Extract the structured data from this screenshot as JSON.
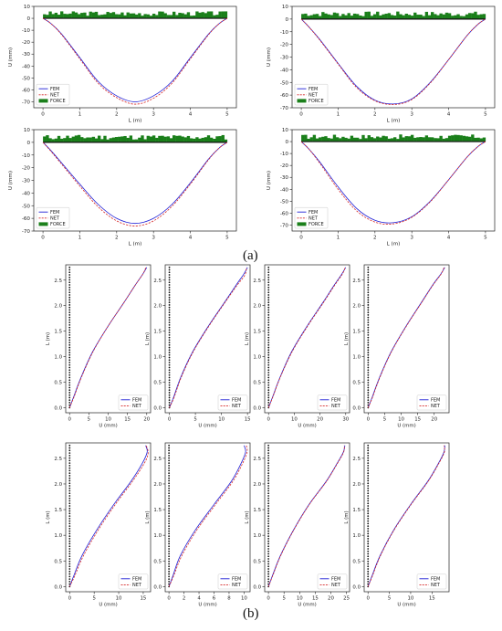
{
  "panel_labels": {
    "a": "(a)",
    "b": "(b)"
  },
  "chart_data": [
    {
      "id": "a1",
      "type": "line",
      "xlabel": "L (m)",
      "ylabel": "U (mm)",
      "xlim": [
        -0.25,
        5.25
      ],
      "ylim": [
        -75,
        10
      ],
      "xticks": [
        "0",
        "1",
        "2",
        "3",
        "4",
        "5"
      ],
      "yticks": [
        "10",
        "0",
        "-10",
        "-20",
        "-30",
        "-40",
        "-50",
        "-60",
        "-70"
      ],
      "legend": "lower-left",
      "series": [
        {
          "name": "FEM",
          "x": [
            0,
            0.2,
            0.5,
            1,
            1.5,
            2,
            2.5,
            3,
            3.5,
            4,
            4.5,
            4.8,
            5
          ],
          "values": [
            0,
            -4,
            -13,
            -33,
            -53,
            -65,
            -70,
            -65,
            -53,
            -33,
            -13,
            -4,
            0
          ]
        },
        {
          "name": "NET",
          "x": [
            0,
            0.2,
            0.5,
            1,
            1.5,
            2,
            2.5,
            3,
            3.5,
            4,
            4.5,
            4.8,
            5
          ],
          "values": [
            0,
            -4,
            -13.5,
            -34,
            -54.5,
            -66.5,
            -72,
            -67,
            -54.5,
            -34,
            -13.5,
            -4,
            0
          ]
        },
        {
          "name": "FORCE",
          "x": [
            0,
            5
          ],
          "values": [
            0,
            6
          ]
        }
      ]
    },
    {
      "id": "a2",
      "type": "line",
      "xlabel": "L (m)",
      "ylabel": "U (mm)",
      "xlim": [
        -0.25,
        5.25
      ],
      "ylim": [
        -70,
        10
      ],
      "xticks": [
        "0",
        "1",
        "2",
        "3",
        "4",
        "5"
      ],
      "yticks": [
        "10",
        "0",
        "-10",
        "-20",
        "-30",
        "-40",
        "-50",
        "-60",
        "-70"
      ],
      "legend": "lower-left",
      "series": [
        {
          "name": "FEM",
          "x": [
            0,
            0.2,
            0.5,
            1,
            1.5,
            2,
            2.5,
            3,
            3.5,
            4,
            4.5,
            4.8,
            5
          ],
          "values": [
            0,
            -6,
            -16,
            -35,
            -53,
            -64,
            -67,
            -63,
            -50,
            -32,
            -13,
            -4,
            0
          ]
        },
        {
          "name": "NET",
          "x": [
            0,
            0.2,
            0.5,
            1,
            1.5,
            2,
            2.5,
            3,
            3.5,
            4,
            4.5,
            4.8,
            5
          ],
          "values": [
            0,
            -6,
            -16.5,
            -35.5,
            -54,
            -64.5,
            -67.5,
            -63.5,
            -50.5,
            -32,
            -13,
            -4,
            0
          ]
        },
        {
          "name": "FORCE",
          "x": [
            0,
            5
          ],
          "values": [
            0,
            6
          ]
        }
      ]
    },
    {
      "id": "a3",
      "type": "line",
      "xlabel": "L (m)",
      "ylabel": "U (mm)",
      "xlim": [
        -0.25,
        5.25
      ],
      "ylim": [
        -70,
        10
      ],
      "xticks": [
        "0",
        "1",
        "2",
        "3",
        "4",
        "5"
      ],
      "yticks": [
        "10",
        "0",
        "-10",
        "-20",
        "-30",
        "-40",
        "-50",
        "-60",
        "-70"
      ],
      "legend": "lower-left",
      "series": [
        {
          "name": "FEM",
          "x": [
            0,
            0.2,
            0.5,
            1,
            1.5,
            2,
            2.5,
            3,
            3.5,
            4,
            4.5,
            4.8,
            5
          ],
          "values": [
            0,
            -6,
            -16,
            -33,
            -49,
            -60,
            -64,
            -60,
            -49,
            -32,
            -13,
            -4,
            0
          ]
        },
        {
          "name": "NET",
          "x": [
            0,
            0.2,
            0.5,
            1,
            1.5,
            2,
            2.5,
            3,
            3.5,
            4,
            4.5,
            4.8,
            5
          ],
          "values": [
            0,
            -6.5,
            -17,
            -34.5,
            -51,
            -62,
            -66,
            -62,
            -50.5,
            -33,
            -13.5,
            -4,
            0
          ]
        },
        {
          "name": "FORCE",
          "x": [
            0,
            5
          ],
          "values": [
            0,
            6
          ]
        }
      ]
    },
    {
      "id": "a4",
      "type": "line",
      "xlabel": "L (m)",
      "ylabel": "U (mm)",
      "xlim": [
        -0.25,
        5.25
      ],
      "ylim": [
        -75,
        10
      ],
      "xticks": [
        "0",
        "1",
        "2",
        "3",
        "4",
        "5"
      ],
      "yticks": [
        "10",
        "0",
        "-10",
        "-20",
        "-30",
        "-40",
        "-50",
        "-60",
        "-70"
      ],
      "legend": "lower-left",
      "series": [
        {
          "name": "FEM",
          "x": [
            0,
            0.2,
            0.5,
            1,
            1.5,
            2,
            2.5,
            3,
            3.5,
            4,
            4.5,
            4.8,
            5
          ],
          "values": [
            0,
            -6,
            -17,
            -38,
            -56,
            -66,
            -68,
            -63,
            -50,
            -32,
            -13,
            -4,
            0
          ]
        },
        {
          "name": "NET",
          "x": [
            0,
            0.2,
            0.5,
            1,
            1.5,
            2,
            2.5,
            3,
            3.5,
            4,
            4.5,
            4.8,
            5
          ],
          "values": [
            0,
            -6,
            -18,
            -40,
            -58,
            -67.5,
            -69,
            -63.5,
            -50.5,
            -32,
            -13,
            -4,
            0
          ]
        },
        {
          "name": "FORCE",
          "x": [
            0,
            5
          ],
          "values": [
            0,
            6
          ]
        }
      ]
    },
    {
      "id": "b1",
      "type": "line",
      "xlabel": "U (mm)",
      "ylabel": "L (m)",
      "xlim": [
        -1,
        21
      ],
      "ylim": [
        -0.1,
        2.8
      ],
      "xticks": [
        "0",
        "5",
        "10",
        "15",
        "20"
      ],
      "yticks": [
        "0.0",
        "0.5",
        "1.0",
        "1.5",
        "2.0",
        "2.5"
      ],
      "legend": "lower-right",
      "series": [
        {
          "name": "FEM",
          "x": [
            0,
            1,
            3,
            6,
            10,
            14,
            17,
            19,
            20
          ],
          "values": [
            0,
            0.2,
            0.6,
            1.1,
            1.6,
            2.05,
            2.4,
            2.62,
            2.75
          ]
        },
        {
          "name": "NET",
          "x": [
            0,
            1.1,
            3.1,
            6.1,
            10,
            14,
            17,
            19,
            19.8
          ],
          "values": [
            0,
            0.2,
            0.6,
            1.1,
            1.6,
            2.05,
            2.4,
            2.62,
            2.75
          ]
        }
      ]
    },
    {
      "id": "b2",
      "type": "line",
      "xlabel": "U (mm)",
      "ylabel": "L (m)",
      "xlim": [
        -0.8,
        15.5
      ],
      "ylim": [
        -0.1,
        2.8
      ],
      "xticks": [
        "0",
        "5",
        "10",
        "15"
      ],
      "yticks": [
        "0.0",
        "0.5",
        "1.0",
        "1.5",
        "2.0",
        "2.5"
      ],
      "legend": "lower-right",
      "series": [
        {
          "name": "FEM",
          "x": [
            0,
            0.8,
            2.2,
            4.5,
            7.5,
            10.5,
            12.8,
            14.3,
            15
          ],
          "values": [
            0,
            0.2,
            0.6,
            1.1,
            1.6,
            2.05,
            2.4,
            2.62,
            2.75
          ]
        },
        {
          "name": "NET",
          "x": [
            0,
            0.9,
            2.3,
            4.6,
            7.6,
            10.6,
            13,
            14.5,
            14.8
          ],
          "values": [
            0,
            0.2,
            0.6,
            1.1,
            1.6,
            2.05,
            2.4,
            2.6,
            2.75
          ]
        }
      ]
    },
    {
      "id": "b3",
      "type": "line",
      "xlabel": "U (mm)",
      "ylabel": "L (m)",
      "xlim": [
        -1.5,
        31.5
      ],
      "ylim": [
        -0.1,
        2.8
      ],
      "xticks": [
        "0",
        "10",
        "20",
        "30"
      ],
      "yticks": [
        "0.0",
        "0.5",
        "1.0",
        "1.5",
        "2.0",
        "2.5"
      ],
      "legend": "lower-right",
      "series": [
        {
          "name": "FEM",
          "x": [
            0,
            1.5,
            4.5,
            9,
            15,
            21,
            25.5,
            28.5,
            30
          ],
          "values": [
            0,
            0.2,
            0.6,
            1.1,
            1.6,
            2.05,
            2.4,
            2.62,
            2.75
          ]
        },
        {
          "name": "NET",
          "x": [
            0,
            1.6,
            4.6,
            9.2,
            15.2,
            21.2,
            25.7,
            28.7,
            29.8
          ],
          "values": [
            0,
            0.2,
            0.6,
            1.1,
            1.6,
            2.05,
            2.4,
            2.62,
            2.75
          ]
        }
      ]
    },
    {
      "id": "b4",
      "type": "line",
      "xlabel": "U (mm)",
      "ylabel": "L (m)",
      "xlim": [
        -1.2,
        24.5
      ],
      "ylim": [
        -0.1,
        2.8
      ],
      "xticks": [
        "0",
        "5",
        "10",
        "15",
        "20"
      ],
      "yticks": [
        "0.0",
        "0.5",
        "1.0",
        "1.5",
        "2.0",
        "2.5"
      ],
      "legend": "lower-right",
      "series": [
        {
          "name": "FEM",
          "x": [
            0,
            1.2,
            3.5,
            7,
            11.5,
            16,
            19.5,
            22,
            23.2
          ],
          "values": [
            0,
            0.2,
            0.6,
            1.1,
            1.6,
            2.05,
            2.4,
            2.62,
            2.75
          ]
        },
        {
          "name": "NET",
          "x": [
            0,
            1.3,
            3.6,
            7.1,
            11.6,
            16.1,
            19.6,
            22.1,
            23
          ],
          "values": [
            0,
            0.2,
            0.6,
            1.1,
            1.6,
            2.05,
            2.4,
            2.62,
            2.75
          ]
        }
      ]
    },
    {
      "id": "b5",
      "type": "line",
      "xlabel": "U (mm)",
      "ylabel": "L (m)",
      "xlim": [
        -0.8,
        16.5
      ],
      "ylim": [
        -0.1,
        2.8
      ],
      "xticks": [
        "0",
        "5",
        "10",
        "15"
      ],
      "yticks": [
        "0.0",
        "0.5",
        "1.0",
        "1.5",
        "2.0",
        "2.5"
      ],
      "legend": "lower-right",
      "series": [
        {
          "name": "FEM",
          "x": [
            0,
            0.8,
            2.5,
            5.5,
            9,
            12.5,
            14.8,
            15.8,
            15.5
          ],
          "values": [
            0,
            0.2,
            0.6,
            1.1,
            1.6,
            2.05,
            2.4,
            2.62,
            2.75
          ]
        },
        {
          "name": "NET",
          "x": [
            0,
            1,
            2.8,
            5.8,
            9.3,
            12.8,
            15.2,
            16,
            15.6
          ],
          "values": [
            0,
            0.2,
            0.6,
            1.1,
            1.6,
            2.05,
            2.4,
            2.6,
            2.75
          ]
        }
      ]
    },
    {
      "id": "b6",
      "type": "line",
      "xlabel": "U (mm)",
      "ylabel": "L (m)",
      "xlim": [
        -0.5,
        10.8
      ],
      "ylim": [
        -0.1,
        2.8
      ],
      "xticks": [
        "0",
        "2",
        "4",
        "6",
        "8",
        "10"
      ],
      "yticks": [
        "0.0",
        "0.5",
        "1.0",
        "1.5",
        "2.0",
        "2.5"
      ],
      "legend": "lower-right",
      "series": [
        {
          "name": "FEM",
          "x": [
            0,
            0.5,
            1.5,
            3.5,
            6,
            8.3,
            9.6,
            10.2,
            10
          ],
          "values": [
            0,
            0.2,
            0.6,
            1.1,
            1.6,
            2.05,
            2.4,
            2.62,
            2.75
          ]
        },
        {
          "name": "NET",
          "x": [
            0,
            0.6,
            1.7,
            3.7,
            6.2,
            8.5,
            9.8,
            10.4,
            10.3
          ],
          "values": [
            0,
            0.2,
            0.6,
            1.1,
            1.6,
            2.05,
            2.4,
            2.62,
            2.75
          ]
        }
      ]
    },
    {
      "id": "b7",
      "type": "line",
      "xlabel": "U (mm)",
      "ylabel": "L (m)",
      "xlim": [
        -1.2,
        26
      ],
      "ylim": [
        -0.1,
        2.8
      ],
      "xticks": [
        "0",
        "5",
        "10",
        "15",
        "20",
        "25"
      ],
      "yticks": [
        "0.0",
        "0.5",
        "1.0",
        "1.5",
        "2.0",
        "2.5"
      ],
      "legend": "lower-right",
      "series": [
        {
          "name": "FEM",
          "x": [
            0,
            1.2,
            3.8,
            8,
            13,
            18.5,
            22,
            24,
            24.5
          ],
          "values": [
            0,
            0.2,
            0.6,
            1.1,
            1.6,
            2.05,
            2.4,
            2.62,
            2.75
          ]
        },
        {
          "name": "NET",
          "x": [
            0,
            1.3,
            3.9,
            8.1,
            13.1,
            18.6,
            22.1,
            24.1,
            24.3
          ],
          "values": [
            0,
            0.2,
            0.6,
            1.1,
            1.6,
            2.05,
            2.4,
            2.62,
            2.75
          ]
        }
      ]
    },
    {
      "id": "b8",
      "type": "line",
      "xlabel": "U (mm)",
      "ylabel": "L (m)",
      "xlim": [
        -0.9,
        19
      ],
      "ylim": [
        -0.1,
        2.8
      ],
      "xticks": [
        "0",
        "5",
        "10",
        "15"
      ],
      "yticks": [
        "0.0",
        "0.5",
        "1.0",
        "1.5",
        "2.0",
        "2.5"
      ],
      "legend": "lower-right",
      "series": [
        {
          "name": "FEM",
          "x": [
            0,
            0.9,
            2.8,
            6,
            10,
            14,
            16.5,
            17.8,
            18
          ],
          "values": [
            0,
            0.2,
            0.6,
            1.1,
            1.6,
            2.05,
            2.4,
            2.62,
            2.75
          ]
        },
        {
          "name": "NET",
          "x": [
            0,
            1,
            2.9,
            6.1,
            10.1,
            14.1,
            16.6,
            17.9,
            17.8
          ],
          "values": [
            0,
            0.2,
            0.6,
            1.1,
            1.6,
            2.05,
            2.4,
            2.62,
            2.75
          ]
        }
      ]
    }
  ],
  "colors": {
    "fem": "#1f1fd6",
    "net": "#d62728",
    "force": "#1a7f1a",
    "axis": "#222222",
    "support": "#111111"
  }
}
